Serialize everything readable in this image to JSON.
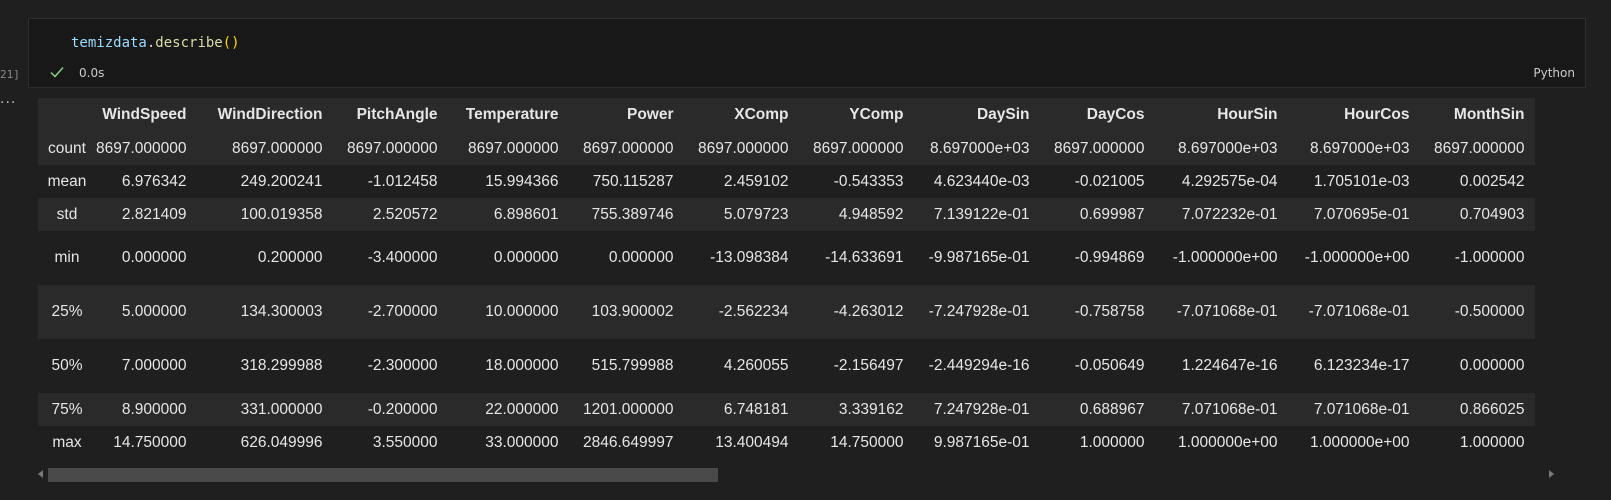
{
  "cell": {
    "exec_count": "21]",
    "more_indicator": "···",
    "code": {
      "ident": "temizdata",
      "dot": ".",
      "func": "describe",
      "parens": "()"
    },
    "status_time": "0.0s",
    "language": "Python"
  },
  "table": {
    "corner": "",
    "columns": [
      "WindSpeed",
      "WindDirection",
      "PitchAngle",
      "Temperature",
      "Power",
      "XComp",
      "YComp",
      "DaySin",
      "DayCos",
      "HourSin",
      "HourCos",
      "MonthSin"
    ],
    "rows": [
      {
        "label": "count",
        "values": [
          "8697.000000",
          "8697.000000",
          "8697.000000",
          "8697.000000",
          "8697.000000",
          "8697.000000",
          "8697.000000",
          "8.697000e+03",
          "8697.000000",
          "8.697000e+03",
          "8.697000e+03",
          "8697.000000"
        ]
      },
      {
        "label": "mean",
        "values": [
          "6.976342",
          "249.200241",
          "-1.012458",
          "15.994366",
          "750.115287",
          "2.459102",
          "-0.543353",
          "4.623440e-03",
          "-0.021005",
          "4.292575e-04",
          "1.705101e-03",
          "0.002542"
        ]
      },
      {
        "label": "std",
        "values": [
          "2.821409",
          "100.019358",
          "2.520572",
          "6.898601",
          "755.389746",
          "5.079723",
          "4.948592",
          "7.139122e-01",
          "0.699987",
          "7.072232e-01",
          "7.070695e-01",
          "0.704903"
        ]
      },
      {
        "label": "min",
        "values": [
          "0.000000",
          "0.200000",
          "-3.400000",
          "0.000000",
          "0.000000",
          "-13.098384",
          "-14.633691",
          "-9.987165e-01",
          "-0.994869",
          "-1.000000e+00",
          "-1.000000e+00",
          "-1.000000"
        ]
      },
      {
        "label": "25%",
        "values": [
          "5.000000",
          "134.300003",
          "-2.700000",
          "10.000000",
          "103.900002",
          "-2.562234",
          "-4.263012",
          "-7.247928e-01",
          "-0.758758",
          "-7.071068e-01",
          "-7.071068e-01",
          "-0.500000"
        ]
      },
      {
        "label": "50%",
        "values": [
          "7.000000",
          "318.299988",
          "-2.300000",
          "18.000000",
          "515.799988",
          "4.260055",
          "-2.156497",
          "-2.449294e-16",
          "-0.050649",
          "1.224647e-16",
          "6.123234e-17",
          "0.000000"
        ]
      },
      {
        "label": "75%",
        "values": [
          "8.900000",
          "331.000000",
          "-0.200000",
          "22.000000",
          "1201.000000",
          "6.748181",
          "3.339162",
          "7.247928e-01",
          "0.688967",
          "7.071068e-01",
          "7.071068e-01",
          "0.866025"
        ]
      },
      {
        "label": "max",
        "values": [
          "14.750000",
          "626.049996",
          "3.550000",
          "33.000000",
          "2846.649997",
          "13.400494",
          "14.750000",
          "9.987165e-01",
          "1.000000",
          "1.000000e+00",
          "1.000000e+00",
          "1.000000"
        ]
      }
    ]
  },
  "colors": {
    "background": "#1f1f1f",
    "cell_background": "#181818",
    "stripe": "#2a2a2a",
    "success_check": "#89d185"
  },
  "icons": {
    "status": "check-icon",
    "scroll_left": "chevron-left-icon",
    "scroll_right": "chevron-right-icon"
  }
}
